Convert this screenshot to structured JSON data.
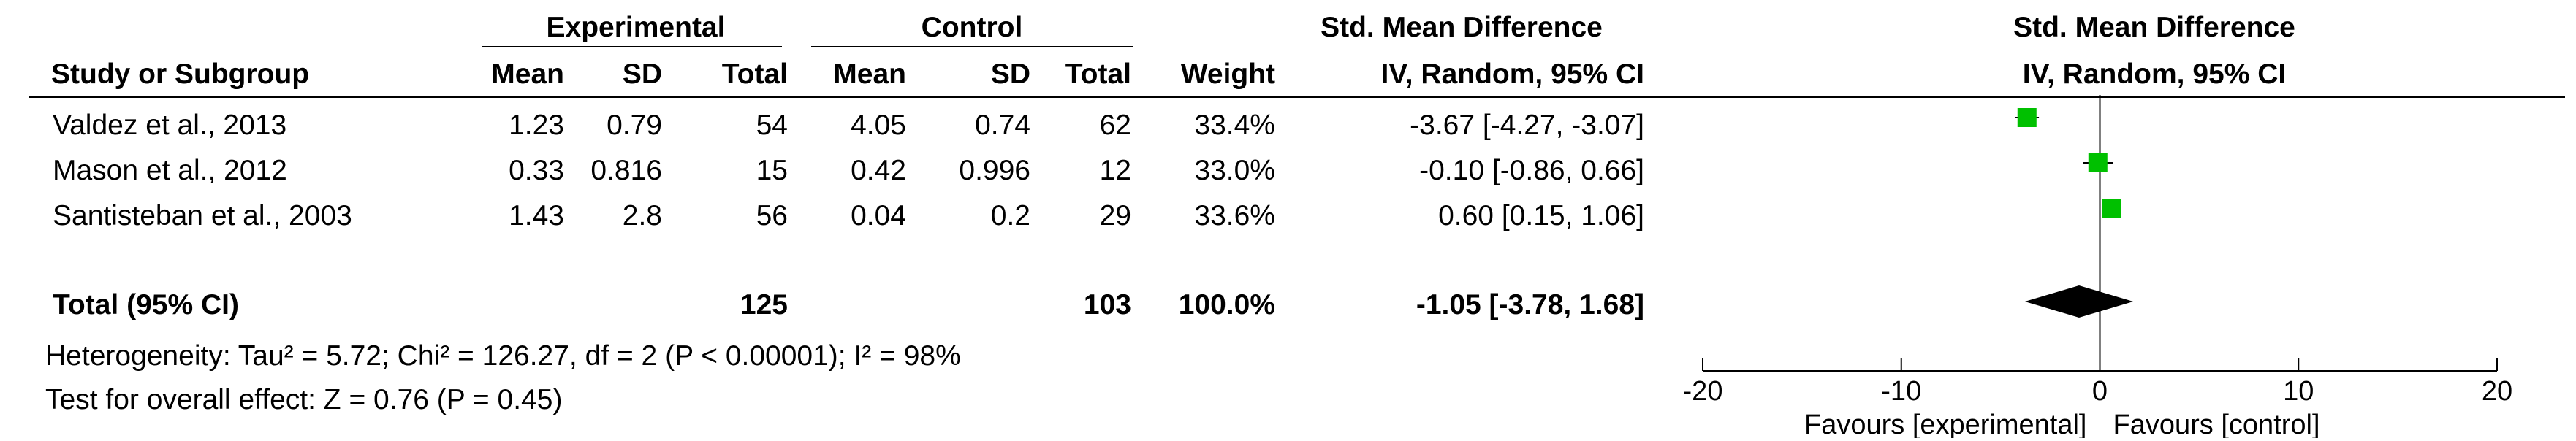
{
  "table": {
    "group_headers": {
      "experimental": "Experimental",
      "control": "Control",
      "smd": "Std. Mean Difference",
      "plot_smd": "Std. Mean Difference"
    },
    "column_headers": {
      "study": "Study or Subgroup",
      "exp_mean": "Mean",
      "exp_sd": "SD",
      "exp_total": "Total",
      "ctl_mean": "Mean",
      "ctl_sd": "SD",
      "ctl_total": "Total",
      "weight": "Weight",
      "smd_method": "IV, Random, 95% CI",
      "plot_method": "IV, Random, 95% CI"
    },
    "rows": [
      {
        "study": "Valdez et al., 2013",
        "exp_mean": "1.23",
        "exp_sd": "0.79",
        "exp_total": "54",
        "ctl_mean": "4.05",
        "ctl_sd": "0.74",
        "ctl_total": "62",
        "weight": "33.4%",
        "ci_text": "-3.67 [-4.27, -3.07]"
      },
      {
        "study": "Mason et al., 2012",
        "exp_mean": "0.33",
        "exp_sd": "0.816",
        "exp_total": "15",
        "ctl_mean": "0.42",
        "ctl_sd": "0.996",
        "ctl_total": "12",
        "weight": "33.0%",
        "ci_text": "-0.10 [-0.86, 0.66]"
      },
      {
        "study": "Santisteban et al., 2003",
        "exp_mean": "1.43",
        "exp_sd": "2.8",
        "exp_total": "56",
        "ctl_mean": "0.04",
        "ctl_sd": "0.2",
        "ctl_total": "29",
        "weight": "33.6%",
        "ci_text": "0.60 [0.15, 1.06]"
      }
    ],
    "total": {
      "label": "Total (95% CI)",
      "exp_total": "125",
      "ctl_total": "103",
      "weight": "100.0%",
      "ci_text": "-1.05 [-3.78, 1.68]"
    },
    "heterogeneity": "Heterogeneity: Tau² = 5.72; Chi² = 126.27, df = 2 (P < 0.00001); I² = 98%",
    "overall_effect": "Test for overall effect: Z = 0.76 (P = 0.45)"
  },
  "chart_data": {
    "type": "forest",
    "xlim": [
      -20,
      20
    ],
    "ticks": [
      -20,
      -10,
      0,
      10,
      20
    ],
    "tick_labels": [
      "-20",
      "-10",
      "0",
      "10",
      "20"
    ],
    "favours_left": "Favours [experimental]",
    "favours_right": "Favours [control]",
    "studies": [
      {
        "estimate": -3.67,
        "lower": -4.27,
        "upper": -3.07,
        "weight": 33.4
      },
      {
        "estimate": -0.1,
        "lower": -0.86,
        "upper": 0.66,
        "weight": 33.0
      },
      {
        "estimate": 0.6,
        "lower": 0.15,
        "upper": 1.06,
        "weight": 33.6
      }
    ],
    "pooled": {
      "estimate": -1.05,
      "lower": -3.78,
      "upper": 1.68
    },
    "colors": {
      "study_marker": "#00c000",
      "pooled_diamond": "#000000",
      "lines": "#000000"
    }
  }
}
